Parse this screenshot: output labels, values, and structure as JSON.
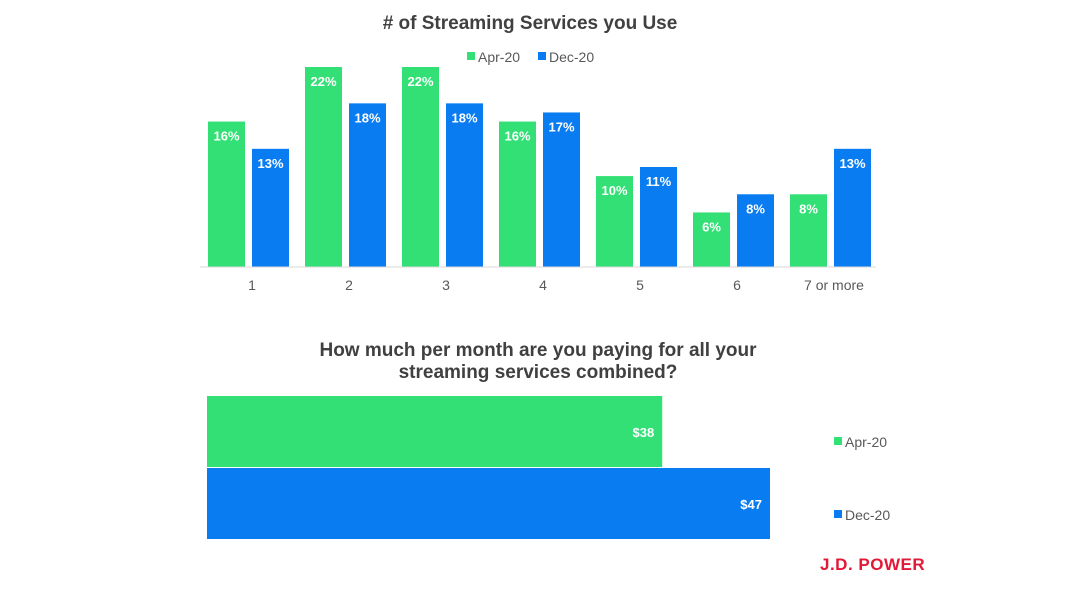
{
  "colors": {
    "apr": "#33e076",
    "dec": "#0a7cf2"
  },
  "logo": "J.D. POWER",
  "chart_data": [
    {
      "type": "bar",
      "title": "# of Streaming Services you Use",
      "categories": [
        "1",
        "2",
        "3",
        "4",
        "5",
        "6",
        "7 or more"
      ],
      "series": [
        {
          "name": "Apr-20",
          "values": [
            16,
            22,
            22,
            16,
            10,
            6,
            8
          ],
          "labels": [
            "16%",
            "22%",
            "22%",
            "16%",
            "10%",
            "6%",
            "8%"
          ]
        },
        {
          "name": "Dec-20",
          "values": [
            13,
            18,
            18,
            17,
            11,
            8,
            13
          ],
          "labels": [
            "13%",
            "18%",
            "18%",
            "17%",
            "11%",
            "8%",
            "13%"
          ]
        }
      ],
      "legend": "top",
      "ylim": [
        0,
        22
      ],
      "grid": false
    },
    {
      "type": "bar",
      "orientation": "horizontal",
      "title": [
        "How much per month are you paying for all your",
        "streaming services combined?"
      ],
      "series": [
        {
          "name": "Apr-20",
          "value": 38,
          "label": "$38"
        },
        {
          "name": "Dec-20",
          "value": 47,
          "label": "$47"
        }
      ],
      "legend": "right",
      "xlim": [
        0,
        47
      ],
      "grid": false
    }
  ]
}
